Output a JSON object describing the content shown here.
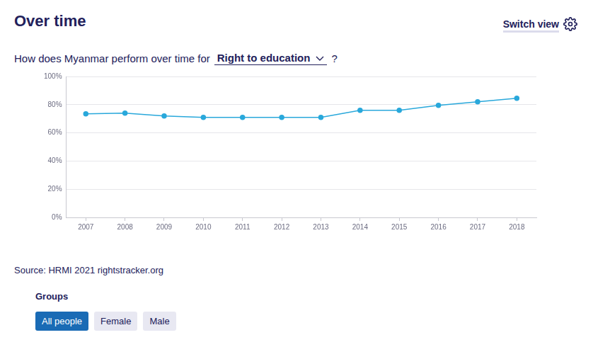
{
  "header": {
    "title": "Over time",
    "switch_view": "Switch view"
  },
  "question": {
    "prefix": "How does Myanmar perform over time for",
    "selected": "Right to education",
    "suffix": "?"
  },
  "chart_data": {
    "type": "line",
    "categories": [
      "2007",
      "2008",
      "2009",
      "2010",
      "2011",
      "2012",
      "2013",
      "2014",
      "2015",
      "2016",
      "2017",
      "2018"
    ],
    "values": [
      73.5,
      74,
      72,
      71,
      71,
      71,
      71,
      76,
      76,
      79.5,
      82,
      84.5
    ],
    "color": "#29a8db",
    "marker": "circle",
    "ylim": [
      0,
      100
    ],
    "yticks": [
      {
        "value": 0,
        "label": "0%"
      },
      {
        "value": 20,
        "label": "20%"
      },
      {
        "value": 40,
        "label": "40%"
      },
      {
        "value": 60,
        "label": "60%"
      },
      {
        "value": 80,
        "label": "80%"
      },
      {
        "value": 100,
        "label": "100%"
      }
    ],
    "grid": true
  },
  "source": "Source: HRMI 2021 rightstracker.org",
  "groups": {
    "title": "Groups",
    "options": [
      "All people",
      "Female",
      "Male"
    ],
    "selected": "All people"
  }
}
